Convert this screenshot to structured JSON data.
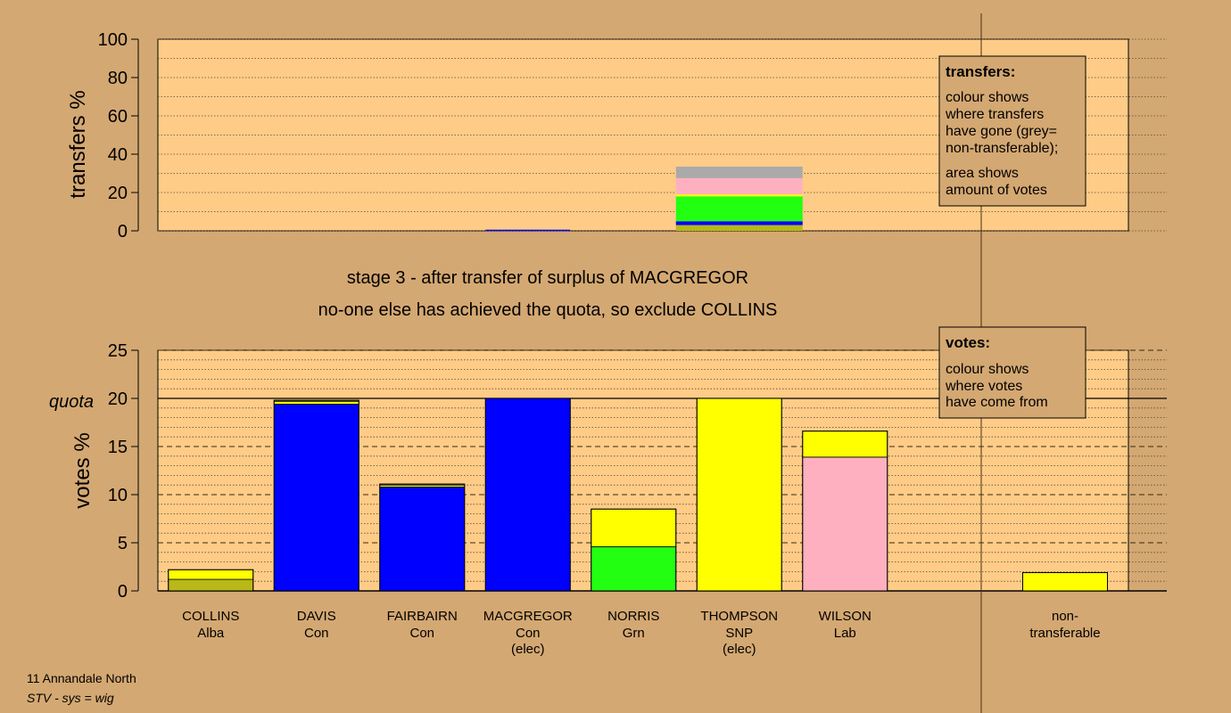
{
  "colors": {
    "background": "#d4a872",
    "panel": "#ffcc88",
    "Alba": "#b8b818",
    "Con": "#0000ff",
    "Grn": "#22ff11",
    "SNP": "#ffff00",
    "Lab": "#ffb0c0",
    "non-transferable": "#aaaaaa"
  },
  "stage": {
    "line1": "stage 3 - after transfer of surplus of MACGREGOR",
    "line2": "no-one else has achieved the quota, so exclude COLLINS"
  },
  "legend_transfers": {
    "title": "transfers:",
    "lines1": [
      "colour shows",
      "where transfers",
      "have gone (grey=",
      "non-transferable);"
    ],
    "lines2": [
      "area shows",
      "amount of votes"
    ]
  },
  "legend_votes": {
    "title": "votes:",
    "lines": [
      "colour shows",
      "where votes",
      "have come from"
    ]
  },
  "footer": {
    "line1": "11 Annandale North",
    "line2": "STV - sys = wig"
  },
  "chart_data": [
    {
      "type": "bar",
      "ylabel": "transfers %",
      "ylim": [
        0,
        100
      ],
      "yticks": [
        0,
        20,
        40,
        60,
        80,
        100
      ],
      "grid": "dotted",
      "bars": [
        {
          "candidate": "MACGREGOR",
          "width_pct": 0.6,
          "segments": [
            {
              "party": "Con",
              "value": 0.6
            }
          ]
        },
        {
          "candidate": "THOMPSON",
          "width_pct": 33.5,
          "segments": [
            {
              "party": "Alba",
              "value": 3.0
            },
            {
              "party": "Con",
              "value": 2.0
            },
            {
              "party": "Grn",
              "value": 13.0
            },
            {
              "party": "SNP",
              "value": 1.0
            },
            {
              "party": "Lab",
              "value": 8.5
            },
            {
              "party": "non-transferable",
              "value": 6.0
            }
          ]
        }
      ]
    },
    {
      "type": "bar",
      "ylabel": "votes %",
      "ylim": [
        0,
        25
      ],
      "yticks": [
        0,
        5,
        10,
        15,
        20,
        25
      ],
      "quota": 20,
      "quota_label": "quota",
      "grid": "dashed",
      "candidates": [
        {
          "name": "COLLINS",
          "party": "Alba",
          "note": "",
          "segments": [
            {
              "party": "Alba",
              "value": 1.2
            },
            {
              "party": "SNP",
              "value": 1.0
            }
          ]
        },
        {
          "name": "DAVIS",
          "party": "Con",
          "note": "",
          "segments": [
            {
              "party": "Con",
              "value": 19.4
            },
            {
              "party": "SNP",
              "value": 0.3
            },
            {
              "party": "Alba",
              "value": 0.1
            }
          ]
        },
        {
          "name": "FAIRBAIRN",
          "party": "Con",
          "note": "",
          "segments": [
            {
              "party": "Con",
              "value": 10.8
            },
            {
              "party": "SNP",
              "value": 0.2
            },
            {
              "party": "Alba",
              "value": 0.1
            }
          ]
        },
        {
          "name": "MACGREGOR",
          "party": "Con",
          "note": "(elec)",
          "segments": [
            {
              "party": "Con",
              "value": 20.0
            }
          ]
        },
        {
          "name": "NORRIS",
          "party": "Grn",
          "note": "",
          "segments": [
            {
              "party": "Grn",
              "value": 4.6
            },
            {
              "party": "SNP",
              "value": 3.9
            }
          ]
        },
        {
          "name": "THOMPSON",
          "party": "SNP",
          "note": "(elec)",
          "segments": [
            {
              "party": "SNP",
              "value": 20.0
            }
          ]
        },
        {
          "name": "WILSON",
          "party": "Lab",
          "note": "",
          "segments": [
            {
              "party": "Lab",
              "value": 13.9
            },
            {
              "party": "SNP",
              "value": 2.7
            }
          ]
        }
      ],
      "non_transferable": {
        "label1": "non-",
        "label2": "transferable",
        "value": 1.9
      }
    }
  ]
}
